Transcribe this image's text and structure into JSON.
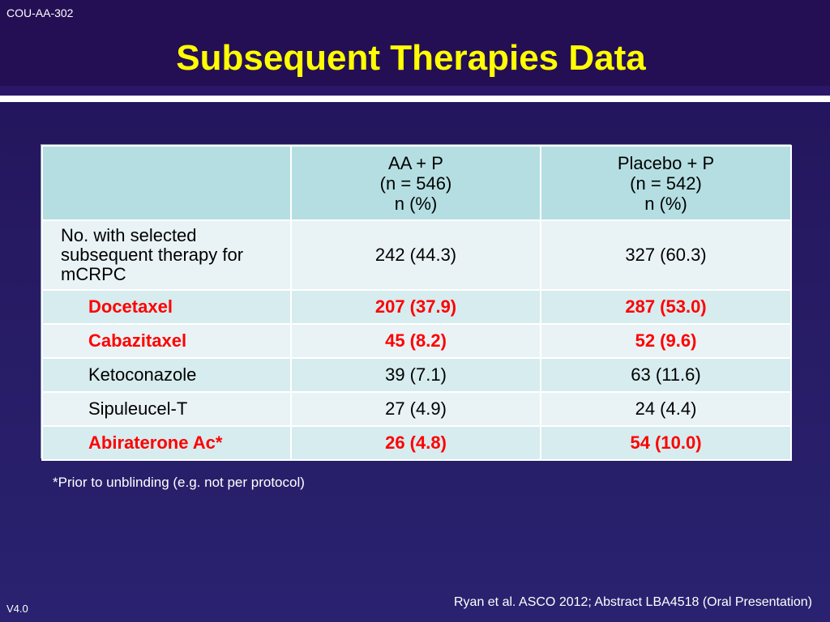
{
  "slide": {
    "doc_id": "COU-AA-302",
    "title": "Subsequent Therapies Data",
    "footnote": "*Prior to unblinding (e.g. not per protocol)",
    "citation": "Ryan et al. ASCO 2012; Abstract LBA4518 (Oral Presentation)",
    "version": "V4.0"
  },
  "table": {
    "headers": [
      {
        "line1": "",
        "line2": "",
        "line3": ""
      },
      {
        "line1": "AA + P",
        "line2": "(n = 546)",
        "line3": "n (%)"
      },
      {
        "line1": "Placebo + P",
        "line2": "(n = 542)",
        "line3": "n (%)"
      }
    ],
    "rows": [
      {
        "label_lines": [
          "No. with selected",
          "subsequent therapy for",
          "mCRPC"
        ],
        "aa": "242 (44.3)",
        "placebo": "327 (60.3)",
        "highlight": false
      },
      {
        "label": "Docetaxel",
        "aa": "207 (37.9)",
        "placebo": "287 (53.0)",
        "highlight": true
      },
      {
        "label": "Cabazitaxel",
        "aa": "45 (8.2)",
        "placebo": "52 (9.6)",
        "highlight": true
      },
      {
        "label": "Ketoconazole",
        "aa": "39 (7.1)",
        "placebo": "63 (11.6)",
        "highlight": false
      },
      {
        "label": "Sipuleucel-T",
        "aa": "27 (4.9)",
        "placebo": "24 (4.4)",
        "highlight": false
      },
      {
        "label": "Abiraterone Ac*",
        "aa": "26 (4.8)",
        "placebo": "54 (10.0)",
        "highlight": true
      }
    ]
  },
  "colors": {
    "title": "#ffff00",
    "highlight_text": "#ff0000",
    "header_cell": "#b5dee2",
    "background": "#22135a"
  }
}
